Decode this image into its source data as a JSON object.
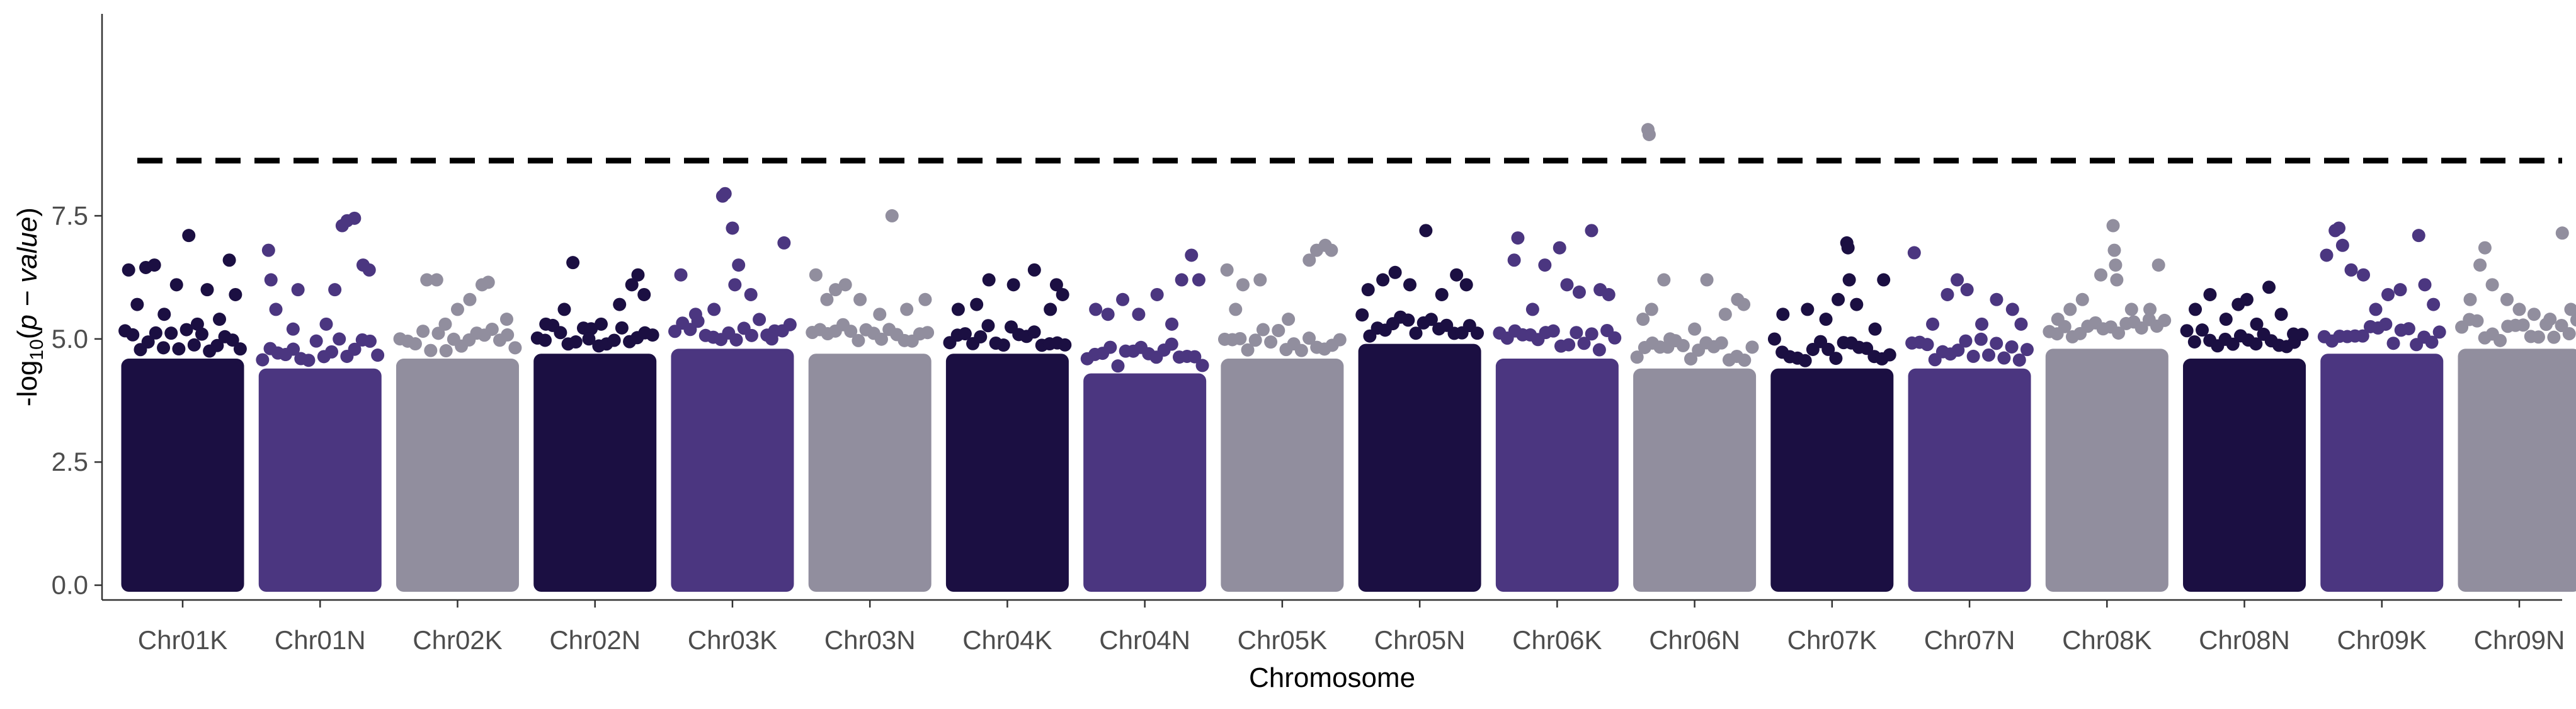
{
  "chart_data": {
    "type": "scatter",
    "subtype": "manhattan",
    "title": "",
    "xlabel": "Chromosome",
    "ylabel": "-log10(p - value)",
    "ylabel_parts": {
      "prefix": "-log",
      "sub": "10",
      "open": "(",
      "italic": "p − value",
      "close": ")"
    },
    "ylim": [
      -0.3,
      11.6
    ],
    "yticks": [
      0.0,
      2.5,
      5.0,
      7.5
    ],
    "ytick_labels": [
      "0.0",
      "2.5",
      "5.0",
      "7.5"
    ],
    "significance_threshold": 8.62,
    "colors": [
      "#1b0f42",
      "#4b3680",
      "#918e9e"
    ],
    "categories": [
      "Chr01K",
      "Chr01N",
      "Chr02K",
      "Chr02N",
      "Chr03K",
      "Chr03N",
      "Chr04K",
      "Chr04N",
      "Chr05K",
      "Chr05N",
      "Chr06K",
      "Chr06N",
      "Chr07K",
      "Chr07N",
      "Chr08K",
      "Chr08N",
      "Chr09K",
      "Chr09N"
    ],
    "series": [
      {
        "name": "Chr01K",
        "color_index": 0,
        "dense_top": 4.6,
        "points": [
          [
            0.06,
            6.4
          ],
          [
            0.13,
            5.7
          ],
          [
            0.2,
            6.45
          ],
          [
            0.27,
            6.5
          ],
          [
            0.35,
            5.5
          ],
          [
            0.45,
            6.1
          ],
          [
            0.55,
            7.1
          ],
          [
            0.62,
            5.3
          ],
          [
            0.7,
            6.0
          ],
          [
            0.8,
            5.4
          ],
          [
            0.88,
            6.6
          ],
          [
            0.93,
            5.9
          ]
        ]
      },
      {
        "name": "Chr01N",
        "color_index": 1,
        "dense_top": 4.4,
        "points": [
          [
            0.08,
            6.8
          ],
          [
            0.1,
            6.2
          ],
          [
            0.14,
            5.6
          ],
          [
            0.28,
            5.2
          ],
          [
            0.32,
            6.0
          ],
          [
            0.55,
            5.3
          ],
          [
            0.62,
            6.0
          ],
          [
            0.68,
            7.3
          ],
          [
            0.72,
            7.4
          ],
          [
            0.78,
            7.45
          ],
          [
            0.85,
            6.5
          ],
          [
            0.9,
            6.4
          ]
        ]
      },
      {
        "name": "Chr02K",
        "color_index": 2,
        "dense_top": 4.6,
        "points": [
          [
            0.25,
            6.2
          ],
          [
            0.33,
            6.2
          ],
          [
            0.4,
            5.3
          ],
          [
            0.5,
            5.6
          ],
          [
            0.6,
            5.8
          ],
          [
            0.7,
            6.1
          ],
          [
            0.75,
            6.15
          ],
          [
            0.9,
            5.4
          ]
        ]
      },
      {
        "name": "Chr02N",
        "color_index": 0,
        "dense_top": 4.7,
        "points": [
          [
            0.1,
            5.3
          ],
          [
            0.25,
            5.6
          ],
          [
            0.32,
            6.55
          ],
          [
            0.45,
            5.0
          ],
          [
            0.55,
            5.3
          ],
          [
            0.7,
            5.7
          ],
          [
            0.8,
            6.1
          ],
          [
            0.85,
            6.3
          ],
          [
            0.9,
            5.9
          ]
        ]
      },
      {
        "name": "Chr03K",
        "color_index": 1,
        "dense_top": 4.8,
        "points": [
          [
            0.08,
            6.3
          ],
          [
            0.2,
            5.5
          ],
          [
            0.35,
            5.6
          ],
          [
            0.42,
            7.9
          ],
          [
            0.44,
            7.95
          ],
          [
            0.5,
            7.25
          ],
          [
            0.52,
            6.1
          ],
          [
            0.55,
            6.5
          ],
          [
            0.65,
            5.9
          ],
          [
            0.82,
            5.0
          ],
          [
            0.92,
            6.95
          ]
        ]
      },
      {
        "name": "Chr03N",
        "color_index": 2,
        "dense_top": 4.7,
        "points": [
          [
            0.06,
            6.3
          ],
          [
            0.15,
            5.8
          ],
          [
            0.22,
            6.0
          ],
          [
            0.3,
            6.1
          ],
          [
            0.42,
            5.8
          ],
          [
            0.58,
            5.5
          ],
          [
            0.68,
            7.5
          ],
          [
            0.8,
            5.6
          ],
          [
            0.95,
            5.8
          ]
        ]
      },
      {
        "name": "Chr04K",
        "color_index": 0,
        "dense_top": 4.7,
        "points": [
          [
            0.1,
            5.6
          ],
          [
            0.25,
            5.7
          ],
          [
            0.35,
            6.2
          ],
          [
            0.55,
            6.1
          ],
          [
            0.72,
            6.4
          ],
          [
            0.85,
            5.6
          ],
          [
            0.9,
            6.1
          ],
          [
            0.95,
            5.9
          ]
        ]
      },
      {
        "name": "Chr04N",
        "color_index": 1,
        "dense_top": 4.3,
        "points": [
          [
            0.1,
            5.6
          ],
          [
            0.2,
            5.5
          ],
          [
            0.32,
            5.8
          ],
          [
            0.45,
            5.5
          ],
          [
            0.6,
            5.9
          ],
          [
            0.72,
            5.3
          ],
          [
            0.8,
            6.2
          ],
          [
            0.88,
            6.7
          ],
          [
            0.94,
            6.2
          ]
        ]
      },
      {
        "name": "Chr05K",
        "color_index": 2,
        "dense_top": 4.6,
        "points": [
          [
            0.05,
            6.4
          ],
          [
            0.12,
            5.6
          ],
          [
            0.18,
            6.1
          ],
          [
            0.32,
            6.2
          ],
          [
            0.55,
            5.4
          ],
          [
            0.72,
            6.6
          ],
          [
            0.78,
            6.8
          ],
          [
            0.85,
            6.9
          ],
          [
            0.9,
            6.8
          ]
        ]
      },
      {
        "name": "Chr05N",
        "color_index": 0,
        "dense_top": 4.9,
        "points": [
          [
            0.08,
            6.0
          ],
          [
            0.2,
            6.2
          ],
          [
            0.3,
            6.35
          ],
          [
            0.42,
            6.1
          ],
          [
            0.55,
            7.2
          ],
          [
            0.68,
            5.9
          ],
          [
            0.8,
            6.3
          ],
          [
            0.88,
            6.1
          ]
        ]
      },
      {
        "name": "Chr06K",
        "color_index": 1,
        "dense_top": 4.6,
        "points": [
          [
            0.15,
            6.6
          ],
          [
            0.18,
            7.05
          ],
          [
            0.3,
            5.6
          ],
          [
            0.4,
            6.5
          ],
          [
            0.52,
            6.85
          ],
          [
            0.58,
            6.1
          ],
          [
            0.68,
            5.95
          ],
          [
            0.78,
            7.2
          ],
          [
            0.85,
            6.0
          ],
          [
            0.92,
            5.9
          ]
        ]
      },
      {
        "name": "Chr06N",
        "color_index": 2,
        "dense_top": 4.4,
        "points": [
          [
            0.08,
            5.4
          ],
          [
            0.15,
            5.6
          ],
          [
            0.25,
            6.2
          ],
          [
            0.3,
            5.0
          ],
          [
            0.12,
            9.25
          ],
          [
            0.13,
            9.15
          ],
          [
            0.5,
            5.2
          ],
          [
            0.6,
            6.2
          ],
          [
            0.75,
            5.5
          ],
          [
            0.85,
            5.8
          ],
          [
            0.9,
            5.7
          ]
        ]
      },
      {
        "name": "Chr07K",
        "color_index": 0,
        "dense_top": 4.4,
        "points": [
          [
            0.1,
            5.5
          ],
          [
            0.3,
            5.6
          ],
          [
            0.45,
            5.4
          ],
          [
            0.55,
            5.8
          ],
          [
            0.62,
            6.95
          ],
          [
            0.63,
            6.85
          ],
          [
            0.64,
            6.2
          ],
          [
            0.7,
            5.7
          ],
          [
            0.85,
            5.2
          ],
          [
            0.92,
            6.2
          ]
        ]
      },
      {
        "name": "Chr07N",
        "color_index": 1,
        "dense_top": 4.4,
        "points": [
          [
            0.05,
            6.75
          ],
          [
            0.2,
            5.3
          ],
          [
            0.32,
            5.9
          ],
          [
            0.4,
            6.2
          ],
          [
            0.48,
            6.0
          ],
          [
            0.6,
            5.3
          ],
          [
            0.72,
            5.8
          ],
          [
            0.85,
            5.6
          ],
          [
            0.92,
            5.3
          ]
        ]
      },
      {
        "name": "Chr08K",
        "color_index": 2,
        "dense_top": 4.8,
        "points": [
          [
            0.1,
            5.4
          ],
          [
            0.2,
            5.6
          ],
          [
            0.3,
            5.8
          ],
          [
            0.45,
            6.3
          ],
          [
            0.55,
            7.3
          ],
          [
            0.56,
            6.8
          ],
          [
            0.57,
            6.5
          ],
          [
            0.58,
            6.2
          ],
          [
            0.7,
            5.6
          ],
          [
            0.85,
            5.6
          ],
          [
            0.92,
            6.5
          ]
        ]
      },
      {
        "name": "Chr08N",
        "color_index": 0,
        "dense_top": 4.6,
        "points": [
          [
            0.1,
            5.6
          ],
          [
            0.22,
            5.9
          ],
          [
            0.35,
            5.4
          ],
          [
            0.45,
            5.7
          ],
          [
            0.52,
            5.8
          ],
          [
            0.6,
            5.3
          ],
          [
            0.7,
            6.05
          ],
          [
            0.8,
            5.5
          ],
          [
            0.9,
            5.1
          ]
        ]
      },
      {
        "name": "Chr09K",
        "color_index": 1,
        "dense_top": 4.7,
        "points": [
          [
            0.05,
            6.7
          ],
          [
            0.12,
            7.2
          ],
          [
            0.15,
            7.25
          ],
          [
            0.18,
            6.9
          ],
          [
            0.25,
            6.4
          ],
          [
            0.35,
            6.3
          ],
          [
            0.45,
            5.6
          ],
          [
            0.55,
            5.9
          ],
          [
            0.65,
            6.0
          ],
          [
            0.8,
            7.1
          ],
          [
            0.85,
            6.1
          ],
          [
            0.92,
            5.7
          ]
        ]
      },
      {
        "name": "Chr09N",
        "color_index": 2,
        "dense_top": 4.8,
        "points": [
          [
            0.1,
            5.8
          ],
          [
            0.18,
            6.5
          ],
          [
            0.22,
            6.85
          ],
          [
            0.28,
            6.1
          ],
          [
            0.4,
            5.8
          ],
          [
            0.5,
            5.6
          ],
          [
            0.62,
            5.5
          ],
          [
            0.75,
            5.4
          ],
          [
            0.85,
            7.15
          ],
          [
            0.92,
            5.6
          ]
        ]
      }
    ]
  }
}
